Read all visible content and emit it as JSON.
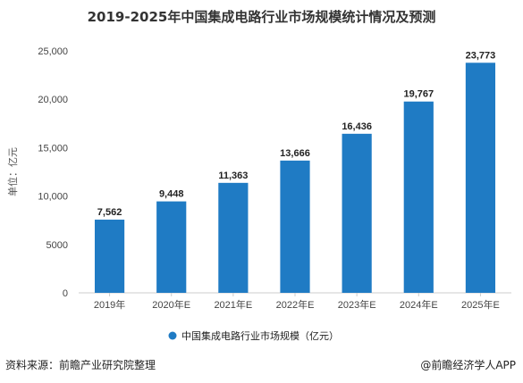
{
  "chart_data": {
    "type": "bar",
    "title": "2019-2025年中国集成电路行业市场规模统计情况及预测",
    "ylabel": "单位：亿元",
    "xlabel": "",
    "categories": [
      "2019年",
      "2020年E",
      "2021年E",
      "2022年E",
      "2023年E",
      "2024年E",
      "2025年E"
    ],
    "series": [
      {
        "name": "中国集成电路行业市场规模（亿元）",
        "values": [
          7562,
          9448,
          11363,
          13666,
          16436,
          19767,
          23773
        ],
        "value_labels": [
          "7,562",
          "9,448",
          "11,363",
          "13,666",
          "16,436",
          "19,767",
          "23,773"
        ]
      }
    ],
    "ylim": [
      0,
      25000
    ],
    "yticks": [
      0,
      5000,
      10000,
      15000,
      20000,
      25000
    ],
    "ytick_labels": [
      "0",
      "5000",
      "10,000",
      "15,000",
      "20,000",
      "25,000"
    ],
    "grid": false,
    "legend_position": "bottom-center",
    "bar_color": "#1f7bc4"
  },
  "footer": {
    "source": "资料来源：前瞻产业研究院整理",
    "credit": "@前瞻经济学人APP"
  }
}
